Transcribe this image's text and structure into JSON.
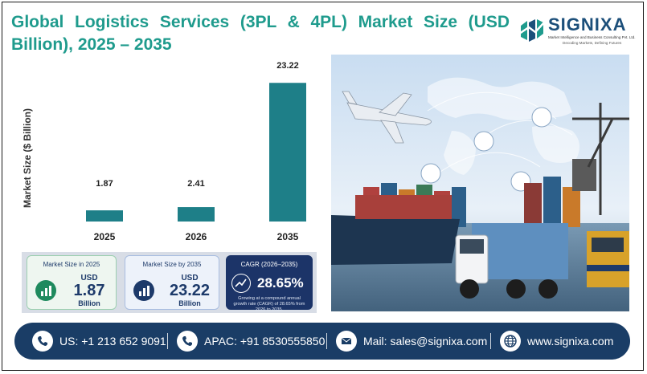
{
  "header": {
    "title": "Global Logistics Services (3PL & 4PL) Market Size (USD Billion), 2025 – 2035"
  },
  "logo": {
    "name": "SIGNIXA",
    "tagline": "Market Intelligence and Business Consulting Pvt. Ltd.",
    "slogan": "Decoding Markets, Defining Futures"
  },
  "chart_data": {
    "type": "bar",
    "categories": [
      "2025",
      "2026",
      "2035"
    ],
    "values": [
      1.87,
      2.41,
      23.22
    ],
    "data_labels": [
      "1.87",
      "2.41",
      "23.22"
    ],
    "ylabel": "Market Size ($ Billion)",
    "xlabel": "",
    "ylim": [
      0,
      25
    ],
    "grid": false,
    "bar_color": "#1e7f88"
  },
  "stats": {
    "card1": {
      "title": "Market Size in 2025",
      "unit": "USD",
      "value": "1.87",
      "suffix": "Billion",
      "icon": "bar-chart-icon"
    },
    "card2": {
      "title": "Market Size by 2035",
      "unit": "USD",
      "value": "23.22",
      "suffix": "Billion",
      "icon": "bar-chart-icon"
    },
    "card3": {
      "title": "CAGR (2026–2035)",
      "value": "28.65%",
      "description": "Growing at a compound annual growth rate (CAGR) of 28.65% from 2026 to 2035.",
      "icon": "growth-chart-icon"
    }
  },
  "footer": {
    "us_phone": "US: +1 213 652 9091",
    "apac_phone": "APAC: +91 8530555850",
    "mail": "Mail: sales@signixa.com",
    "website": "www.signixa.com"
  },
  "colors": {
    "title": "#1f9b8d",
    "bar": "#1e7f88",
    "footer": "#1a3d66",
    "cagr_card": "#1c3468"
  }
}
